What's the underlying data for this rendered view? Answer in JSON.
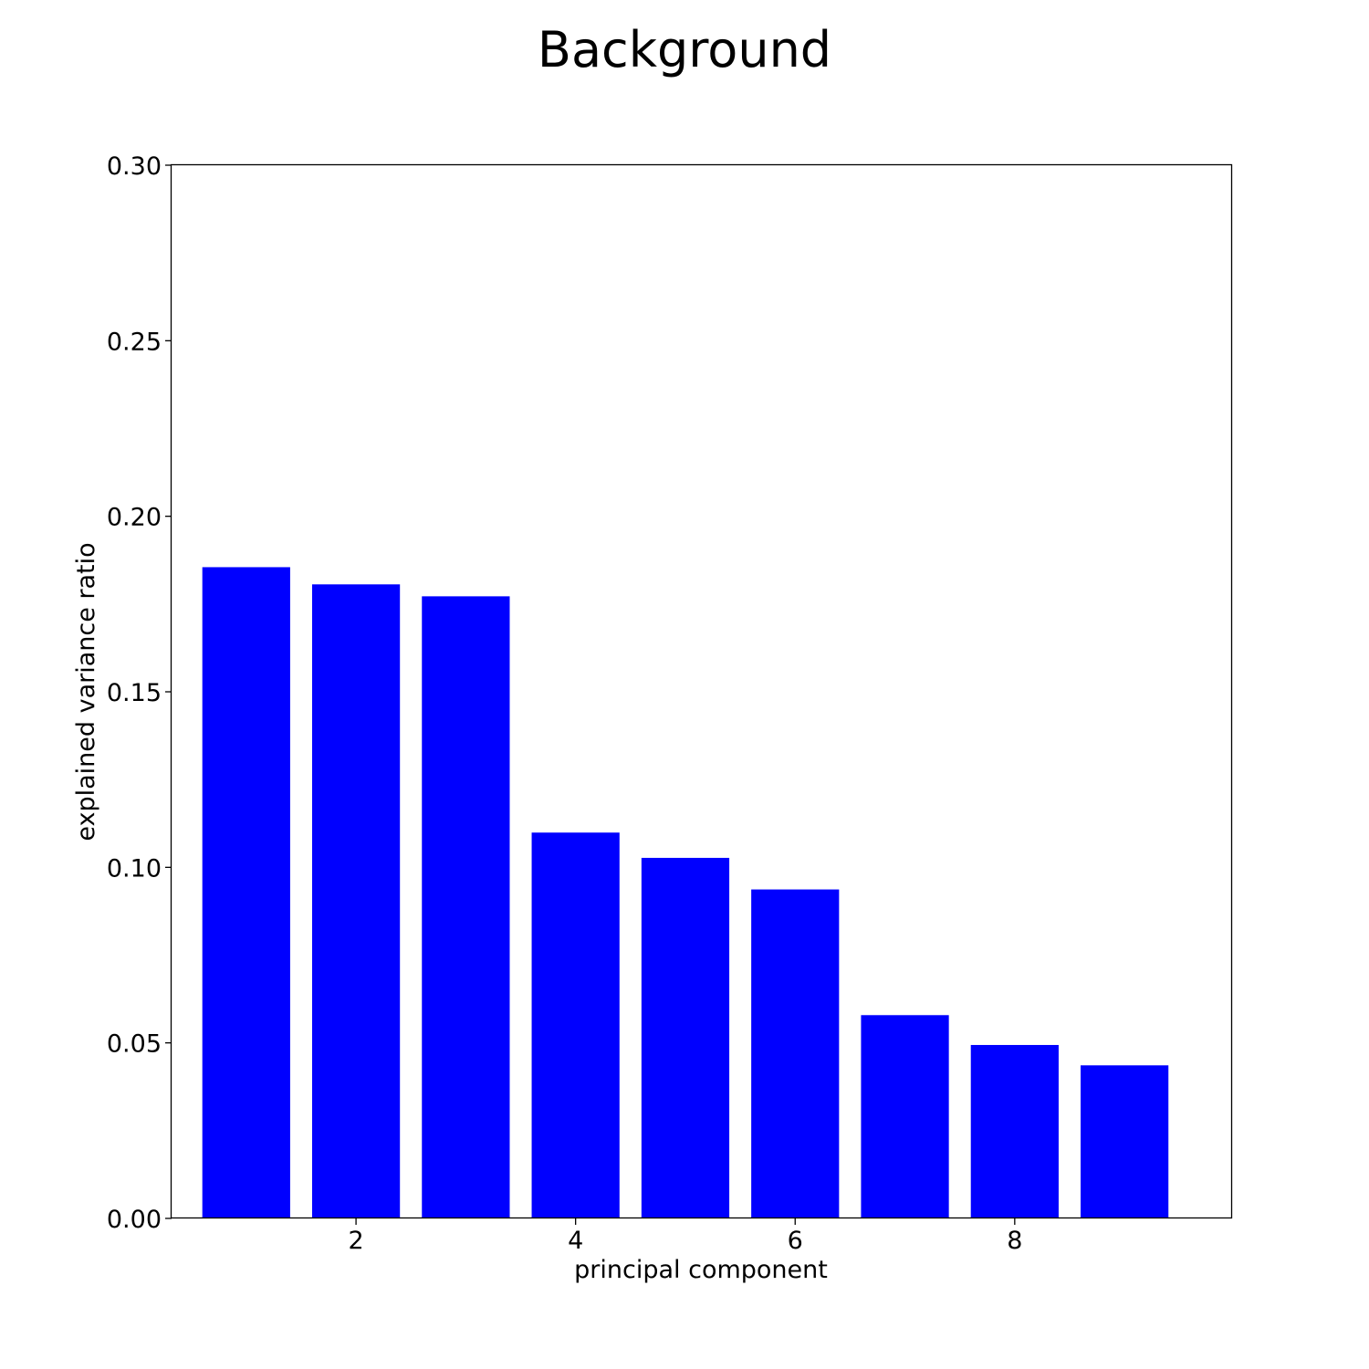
{
  "chart_data": {
    "type": "bar",
    "title": "Background",
    "xlabel": "principal component",
    "ylabel": "explained variance ratio",
    "x": [
      1,
      2,
      3,
      4,
      5,
      6,
      7,
      8,
      9
    ],
    "values": [
      0.1855,
      0.1806,
      0.1772,
      0.1099,
      0.1027,
      0.0937,
      0.0579,
      0.0494,
      0.0436
    ],
    "xlim": [
      0.32,
      9.98
    ],
    "ylim": [
      0,
      0.3
    ],
    "xticks": [
      2,
      4,
      6,
      8
    ],
    "xtick_labels": [
      "2",
      "4",
      "6",
      "8"
    ],
    "yticks": [
      0,
      0.05,
      0.1,
      0.15,
      0.2,
      0.25,
      0.3
    ],
    "ytick_labels": [
      "0.00",
      "0.05",
      "0.10",
      "0.15",
      "0.20",
      "0.25",
      "0.30"
    ],
    "bar_color": "#0000ff",
    "grid": false,
    "legend": "none"
  }
}
